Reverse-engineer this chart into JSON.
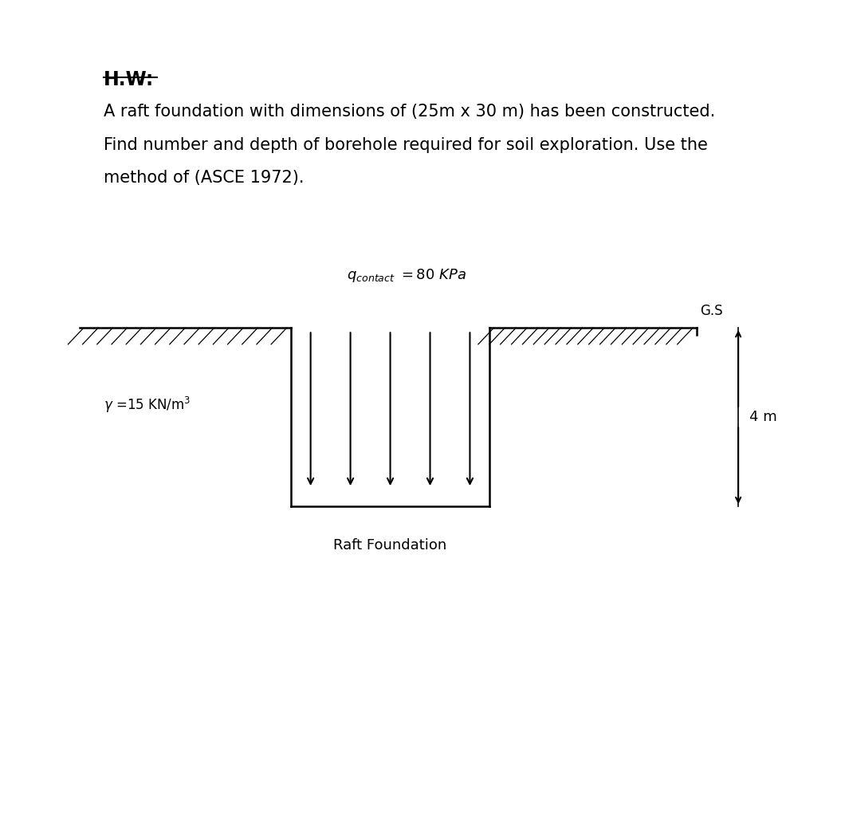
{
  "bg_color": "#ffffff",
  "title_hw": "H.W:",
  "line1": "A raft foundation with dimensions of (25m x 30 m) has been constructed.",
  "line2": "Find number and depth of borehole required for soil exploration. Use the",
  "line3": "method of (ASCE 1972).",
  "gs_label": "G.S",
  "depth_label": "4 m",
  "raft_label": "Raft Foundation",
  "gy": 0.605,
  "pit_l": 0.365,
  "pit_r": 0.615,
  "pit_b": 0.39,
  "lgl": 0.1,
  "rgl_r": 0.875
}
